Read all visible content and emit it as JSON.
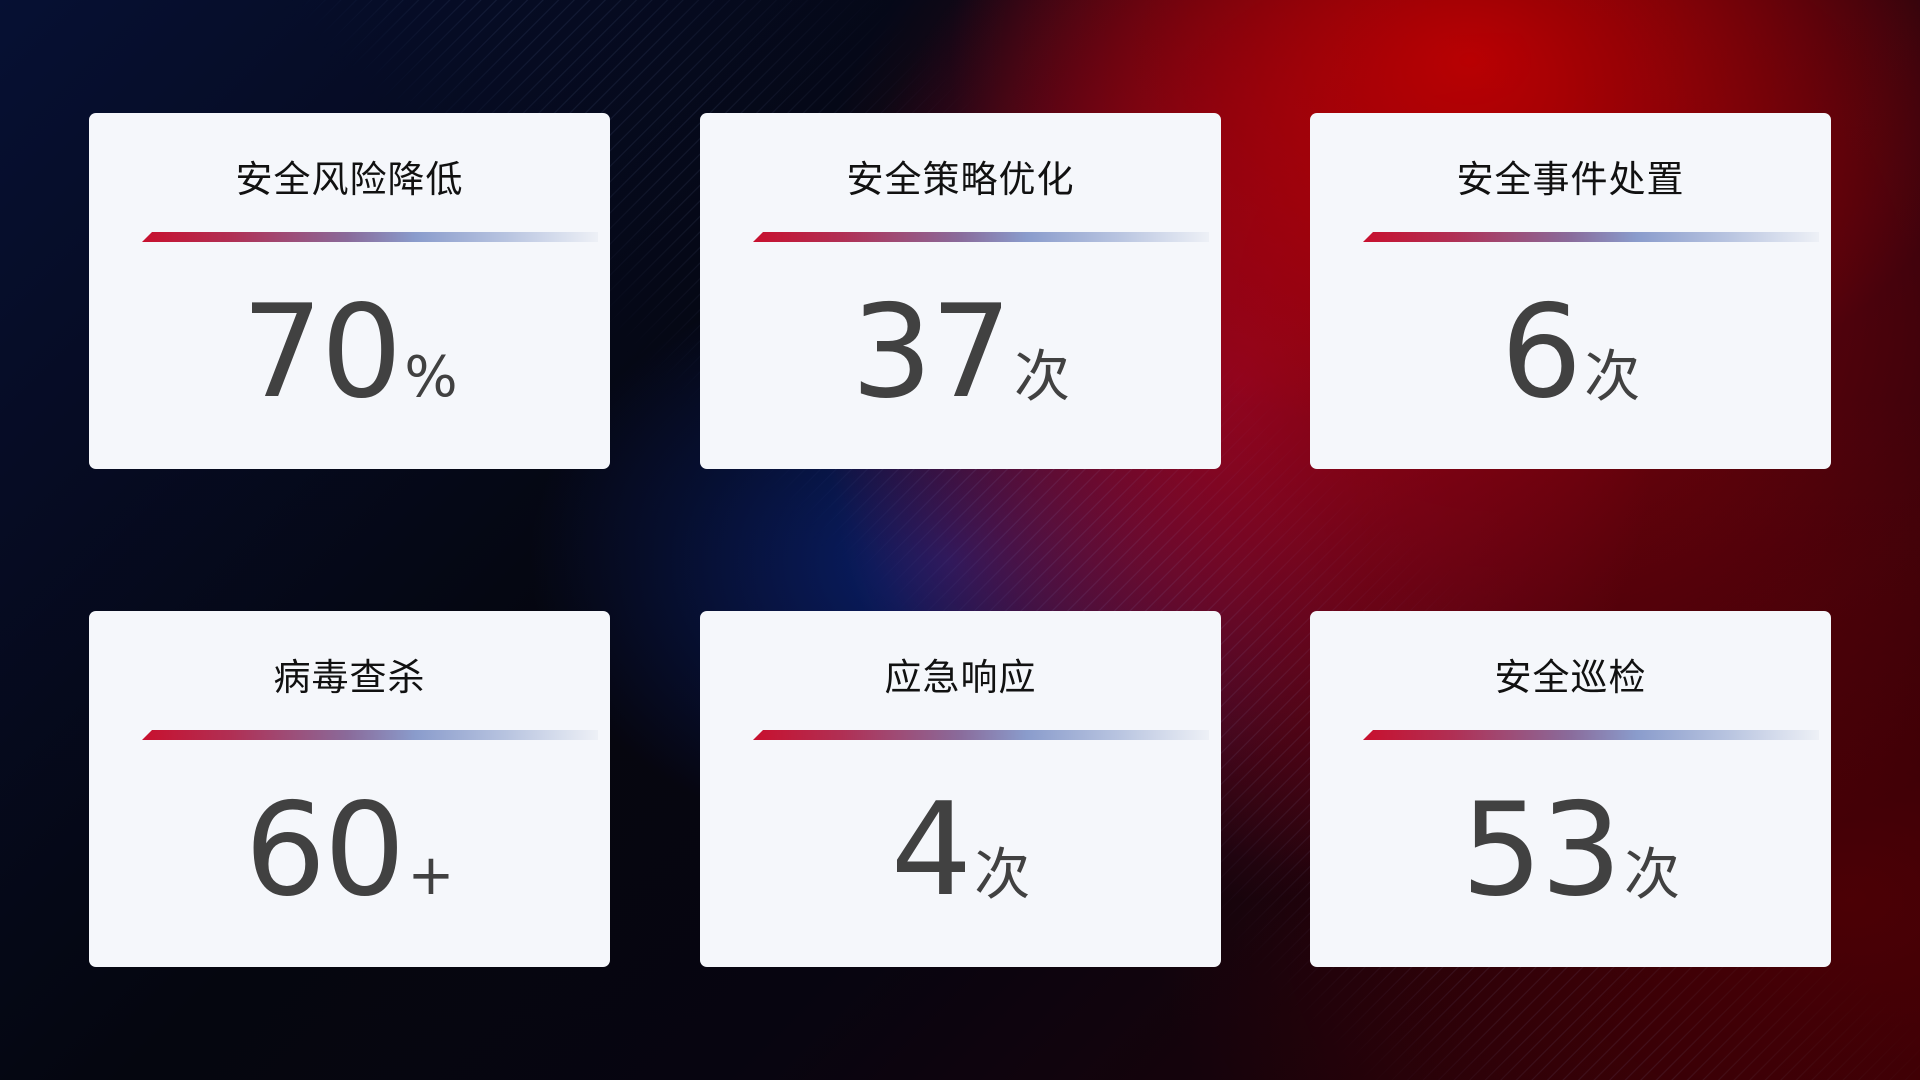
{
  "cards": [
    {
      "title": "安全风险降低",
      "value": "70",
      "unit": "%"
    },
    {
      "title": "安全策略优化",
      "value": "37",
      "unit": "次"
    },
    {
      "title": "安全事件处置",
      "value": "6",
      "unit": "次"
    },
    {
      "title": "病毒查杀",
      "value": "60",
      "unit": "+"
    },
    {
      "title": "应急响应",
      "value": "4",
      "unit": "次"
    },
    {
      "title": "安全巡检",
      "value": "53",
      "unit": "次"
    }
  ],
  "colors": {
    "accent_red": "#c8102e",
    "accent_blue": "#8a9ccc",
    "card_bg": "#f5f7fb",
    "number": "#414141"
  }
}
